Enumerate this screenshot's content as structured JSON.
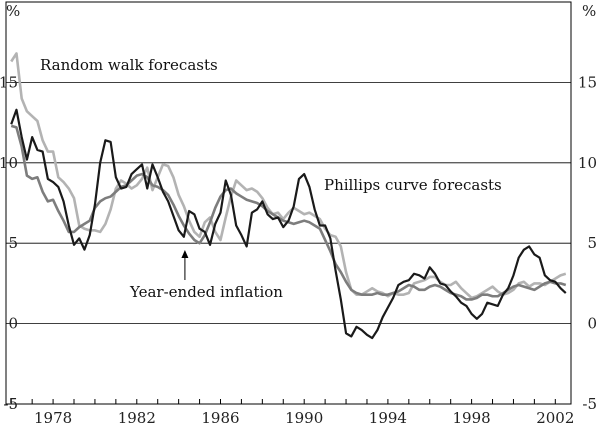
{
  "chart_data": {
    "type": "line",
    "title": "",
    "xlabel": "",
    "ylabel": "%",
    "ylabel_right": "%",
    "xlim": [
      1975.75,
      2002.75
    ],
    "ylim": [
      -5,
      20
    ],
    "yticks": [
      -5,
      0,
      5,
      10,
      15
    ],
    "ytick_labels": [
      "-5",
      "0",
      "5",
      "10",
      "15"
    ],
    "xticks": [
      1978,
      1982,
      1986,
      1990,
      1994,
      1998,
      2002
    ],
    "xtick_labels": [
      "1978",
      "1982",
      "1986",
      "1990",
      "1994",
      "1998",
      "2002"
    ],
    "grid": "horizontal",
    "annotations": [
      {
        "text": "Random walk forecasts",
        "series": "Random walk forecasts"
      },
      {
        "text": "Phillips curve forecasts",
        "series": "Phillips curve forecasts"
      },
      {
        "text": "Year-ended inflation",
        "series": "Year-ended inflation",
        "arrow_to": [
          1984.3,
          4.7
        ]
      }
    ],
    "series": [
      {
        "name": "Year-ended inflation",
        "color": "#1a1a1a",
        "x": [
          1976.0,
          1976.25,
          1976.5,
          1976.75,
          1977.0,
          1977.25,
          1977.5,
          1977.75,
          1978.0,
          1978.25,
          1978.5,
          1978.75,
          1979.0,
          1979.25,
          1979.5,
          1979.75,
          1980.0,
          1980.25,
          1980.5,
          1980.75,
          1981.0,
          1981.25,
          1981.5,
          1981.75,
          1982.0,
          1982.25,
          1982.5,
          1982.75,
          1983.0,
          1983.25,
          1983.5,
          1983.75,
          1984.0,
          1984.25,
          1984.5,
          1984.75,
          1985.0,
          1985.25,
          1985.5,
          1985.75,
          1986.0,
          1986.25,
          1986.5,
          1986.75,
          1987.0,
          1987.25,
          1987.5,
          1987.75,
          1988.0,
          1988.25,
          1988.5,
          1988.75,
          1989.0,
          1989.25,
          1989.5,
          1989.75,
          1990.0,
          1990.25,
          1990.5,
          1990.75,
          1991.0,
          1991.25,
          1991.5,
          1991.75,
          1992.0,
          1992.25,
          1992.5,
          1992.75,
          1993.0,
          1993.25,
          1993.5,
          1993.75,
          1994.0,
          1994.25,
          1994.5,
          1994.75,
          1995.0,
          1995.25,
          1995.5,
          1995.75,
          1996.0,
          1996.25,
          1996.5,
          1996.75,
          1997.0,
          1997.25,
          1997.5,
          1997.75,
          1998.0,
          1998.25,
          1998.5,
          1998.75,
          1999.0,
          1999.25,
          1999.5,
          1999.75,
          2000.0,
          2000.25,
          2000.5,
          2000.75,
          2001.0,
          2001.25,
          2001.5,
          2001.75,
          2002.0,
          2002.25,
          2002.5
        ],
        "y": [
          12.4,
          13.3,
          11.6,
          10.2,
          11.6,
          10.8,
          10.7,
          9.0,
          8.8,
          8.5,
          7.6,
          6.1,
          4.9,
          5.3,
          4.6,
          5.5,
          7.4,
          10.0,
          11.4,
          11.3,
          9.1,
          8.4,
          8.5,
          9.3,
          9.6,
          9.9,
          8.4,
          9.9,
          9.1,
          8.2,
          7.6,
          6.7,
          5.8,
          5.4,
          7.0,
          6.8,
          5.9,
          5.7,
          4.9,
          6.2,
          6.9,
          8.9,
          8.0,
          6.1,
          5.5,
          4.8,
          6.9,
          7.1,
          7.6,
          6.8,
          6.5,
          6.6,
          6.0,
          6.4,
          7.3,
          9.0,
          9.3,
          8.5,
          7.1,
          6.1,
          6.1,
          5.3,
          3.3,
          1.5,
          -0.6,
          -0.8,
          -0.2,
          -0.4,
          -0.7,
          -0.9,
          -0.4,
          0.4,
          1.0,
          1.6,
          2.4,
          2.6,
          2.7,
          3.1,
          3.0,
          2.8,
          3.5,
          3.1,
          2.5,
          2.4,
          2.0,
          1.7,
          1.3,
          1.1,
          0.6,
          0.3,
          0.6,
          1.3,
          1.2,
          1.1,
          1.8,
          2.2,
          3.0,
          4.1,
          4.6,
          4.8,
          4.3,
          4.1,
          3.0,
          2.7,
          2.6,
          2.2,
          1.9
        ]
      },
      {
        "name": "Random walk forecasts",
        "color": "#b3b3b3",
        "x": [
          1976.0,
          1976.25,
          1976.5,
          1976.75,
          1977.0,
          1977.25,
          1977.5,
          1977.75,
          1978.0,
          1978.25,
          1978.5,
          1978.75,
          1979.0,
          1979.25,
          1979.5,
          1979.75,
          1980.0,
          1980.25,
          1980.5,
          1980.75,
          1981.0,
          1981.25,
          1981.5,
          1981.75,
          1982.0,
          1982.25,
          1982.5,
          1982.75,
          1983.0,
          1983.25,
          1983.5,
          1983.75,
          1984.0,
          1984.25,
          1984.5,
          1984.75,
          1985.0,
          1985.25,
          1985.5,
          1985.75,
          1986.0,
          1986.25,
          1986.5,
          1986.75,
          1987.0,
          1987.25,
          1987.5,
          1987.75,
          1988.0,
          1988.25,
          1988.5,
          1988.75,
          1989.0,
          1989.25,
          1989.5,
          1989.75,
          1990.0,
          1990.25,
          1990.5,
          1990.75,
          1991.0,
          1991.25,
          1991.5,
          1991.75,
          1992.0,
          1992.25,
          1992.5,
          1992.75,
          1993.0,
          1993.25,
          1993.5,
          1993.75,
          1994.0,
          1994.25,
          1994.5,
          1994.75,
          1995.0,
          1995.25,
          1995.5,
          1995.75,
          1996.0,
          1996.25,
          1996.5,
          1996.75,
          1997.0,
          1997.25,
          1997.5,
          1997.75,
          1998.0,
          1998.25,
          1998.5,
          1998.75,
          1999.0,
          1999.25,
          1999.5,
          1999.75,
          2000.0,
          2000.25,
          2000.5,
          2000.75,
          2001.0,
          2001.25,
          2001.5,
          2001.75,
          2002.0,
          2002.25,
          2002.5
        ],
        "y": [
          16.3,
          16.8,
          14.0,
          13.2,
          12.9,
          12.6,
          11.4,
          10.7,
          10.7,
          9.1,
          8.8,
          8.4,
          7.8,
          6.1,
          5.9,
          5.8,
          5.8,
          5.7,
          6.2,
          7.1,
          8.4,
          8.9,
          8.7,
          8.4,
          8.6,
          9.0,
          9.7,
          8.3,
          9.1,
          9.9,
          9.8,
          9.1,
          8.0,
          7.3,
          6.4,
          5.7,
          5.4,
          6.3,
          6.6,
          5.7,
          5.2,
          6.6,
          7.9,
          8.9,
          8.6,
          8.3,
          8.4,
          8.2,
          7.8,
          7.2,
          6.8,
          6.9,
          6.5,
          6.9,
          7.2,
          7.0,
          6.8,
          6.9,
          6.7,
          6.5,
          5.9,
          5.5,
          5.4,
          4.8,
          3.2,
          2.1,
          1.8,
          1.8,
          2.0,
          2.2,
          2.0,
          1.9,
          1.7,
          1.9,
          1.8,
          1.8,
          1.9,
          2.5,
          2.6,
          2.7,
          2.9,
          2.9,
          2.6,
          2.4,
          2.4,
          2.6,
          2.2,
          1.9,
          1.6,
          1.7,
          1.9,
          2.1,
          2.3,
          2.0,
          1.8,
          1.9,
          2.1,
          2.5,
          2.6,
          2.3,
          2.5,
          2.5,
          2.4,
          2.6,
          2.8,
          3.0,
          3.1
        ]
      },
      {
        "name": "Phillips curve forecasts",
        "color": "#7d7d7d",
        "x": [
          1976.0,
          1976.25,
          1976.5,
          1976.75,
          1977.0,
          1977.25,
          1977.5,
          1977.75,
          1978.0,
          1978.25,
          1978.5,
          1978.75,
          1979.0,
          1979.25,
          1979.5,
          1979.75,
          1980.0,
          1980.25,
          1980.5,
          1980.75,
          1981.0,
          1981.25,
          1981.5,
          1981.75,
          1982.0,
          1982.25,
          1982.5,
          1982.75,
          1983.0,
          1983.25,
          1983.5,
          1983.75,
          1984.0,
          1984.25,
          1984.5,
          1984.75,
          1985.0,
          1985.25,
          1985.5,
          1985.75,
          1986.0,
          1986.25,
          1986.5,
          1986.75,
          1987.0,
          1987.25,
          1987.5,
          1987.75,
          1988.0,
          1988.25,
          1988.5,
          1988.75,
          1989.0,
          1989.25,
          1989.5,
          1989.75,
          1990.0,
          1990.25,
          1990.5,
          1990.75,
          1991.0,
          1991.25,
          1991.5,
          1991.75,
          1992.0,
          1992.25,
          1992.5,
          1992.75,
          1993.0,
          1993.25,
          1993.5,
          1993.75,
          1994.0,
          1994.25,
          1994.5,
          1994.75,
          1995.0,
          1995.25,
          1995.5,
          1995.75,
          1996.0,
          1996.25,
          1996.5,
          1996.75,
          1997.0,
          1997.25,
          1997.5,
          1997.75,
          1998.0,
          1998.25,
          1998.5,
          1998.75,
          1999.0,
          1999.25,
          1999.5,
          1999.75,
          2000.0,
          2000.25,
          2000.5,
          2000.75,
          2001.0,
          2001.25,
          2001.5,
          2001.75,
          2002.0,
          2002.25,
          2002.5
        ],
        "y": [
          12.3,
          12.2,
          11.0,
          9.2,
          9.0,
          9.1,
          8.2,
          7.6,
          7.7,
          7.0,
          6.4,
          5.7,
          5.7,
          6.0,
          6.2,
          6.4,
          7.2,
          7.6,
          7.8,
          7.9,
          8.2,
          8.5,
          8.6,
          8.9,
          9.2,
          9.3,
          9.1,
          8.6,
          8.5,
          8.3,
          8.0,
          7.4,
          6.7,
          6.1,
          5.6,
          5.2,
          5.0,
          5.5,
          6.3,
          7.2,
          7.9,
          8.3,
          8.4,
          8.1,
          7.9,
          7.7,
          7.6,
          7.5,
          7.3,
          7.0,
          6.8,
          6.6,
          6.4,
          6.3,
          6.2,
          6.3,
          6.4,
          6.3,
          6.1,
          5.9,
          5.2,
          4.5,
          3.7,
          3.2,
          2.6,
          2.1,
          1.9,
          1.8,
          1.8,
          1.8,
          1.9,
          1.8,
          1.8,
          1.9,
          2.0,
          2.2,
          2.4,
          2.3,
          2.1,
          2.1,
          2.3,
          2.4,
          2.3,
          2.1,
          1.9,
          1.8,
          1.7,
          1.5,
          1.5,
          1.6,
          1.8,
          1.8,
          1.7,
          1.7,
          1.9,
          2.1,
          2.3,
          2.4,
          2.3,
          2.2,
          2.1,
          2.3,
          2.5,
          2.6,
          2.5,
          2.5,
          2.4
        ]
      }
    ]
  }
}
